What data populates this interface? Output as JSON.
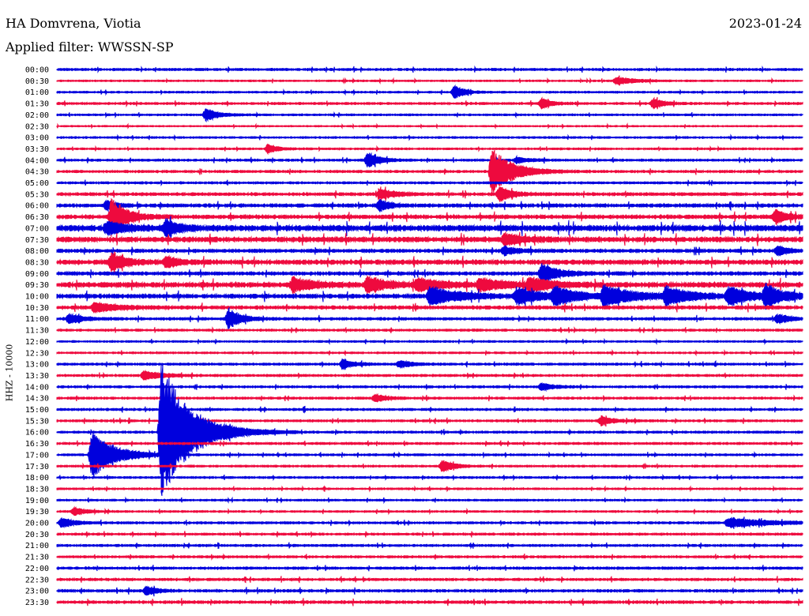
{
  "header": {
    "station": "HA Domvrena, Viotia",
    "date": "2023-01-24",
    "filter": "Applied filter: WWSSN-SP",
    "channel": "HHZ - 10000"
  },
  "colors": {
    "odd_trace": "#0000dd",
    "even_trace": "#ee0a3e"
  },
  "chart_data": {
    "type": "line",
    "title": "HA Domvrena, Viotia",
    "ylabel": "HHZ - 10000",
    "grid": false,
    "legend": "none",
    "rows": [
      "00:00",
      "00:30",
      "01:00",
      "01:30",
      "02:00",
      "02:30",
      "03:00",
      "03:30",
      "04:00",
      "04:30",
      "05:00",
      "05:30",
      "06:00",
      "06:30",
      "07:00",
      "07:30",
      "08:00",
      "08:30",
      "09:00",
      "09:30",
      "10:00",
      "10:30",
      "11:00",
      "11:30",
      "12:00",
      "12:30",
      "13:00",
      "13:30",
      "14:00",
      "14:30",
      "15:00",
      "15:30",
      "16:00",
      "16:30",
      "17:00",
      "17:30",
      "18:00",
      "18:30",
      "19:00",
      "19:30",
      "20:00",
      "20:30",
      "21:00",
      "21:30",
      "22:00",
      "22:30",
      "23:00",
      "23:30"
    ],
    "row_minutes": 30,
    "noise": [
      1.2,
      0.9,
      1.0,
      1.2,
      1.0,
      0.8,
      1.0,
      1.0,
      1.2,
      1.3,
      1.2,
      1.6,
      1.8,
      2.0,
      3.0,
      2.6,
      1.8,
      2.4,
      1.8,
      2.6,
      2.2,
      1.8,
      1.4,
      1.2,
      1.0,
      1.0,
      1.2,
      1.2,
      1.2,
      1.2,
      1.2,
      1.2,
      1.2,
      1.2,
      1.1,
      1.1,
      1.1,
      1.0,
      1.0,
      1.0,
      1.2,
      1.2,
      1.2,
      1.2,
      1.3,
      1.3,
      1.4,
      1.5
    ],
    "events": [
      {
        "row": 1,
        "minute": 22.5,
        "amplitude": 5,
        "duration": 1.5
      },
      {
        "row": 2,
        "minute": 16.0,
        "amplitude": 9,
        "duration": 0.8
      },
      {
        "row": 3,
        "minute": 19.5,
        "amplitude": 7,
        "duration": 0.8
      },
      {
        "row": 3,
        "minute": 24.0,
        "amplitude": 7,
        "duration": 0.8
      },
      {
        "row": 4,
        "minute": 6.0,
        "amplitude": 9,
        "duration": 1.0
      },
      {
        "row": 7,
        "minute": 8.5,
        "amplitude": 6,
        "duration": 0.8
      },
      {
        "row": 8,
        "minute": 12.5,
        "amplitude": 10,
        "duration": 1.0
      },
      {
        "row": 8,
        "minute": 18.5,
        "amplitude": 4,
        "duration": 1.0
      },
      {
        "row": 9,
        "minute": 17.5,
        "amplitude": 30,
        "duration": 1.8
      },
      {
        "row": 11,
        "minute": 13.0,
        "amplitude": 7,
        "duration": 1.2
      },
      {
        "row": 11,
        "minute": 17.8,
        "amplitude": 10,
        "duration": 1.0
      },
      {
        "row": 12,
        "minute": 2.0,
        "amplitude": 7,
        "duration": 0.8
      },
      {
        "row": 12,
        "minute": 13.0,
        "amplitude": 8,
        "duration": 0.8
      },
      {
        "row": 13,
        "minute": 2.2,
        "amplitude": 26,
        "duration": 1.2
      },
      {
        "row": 13,
        "minute": 28.9,
        "amplitude": 9,
        "duration": 1.0
      },
      {
        "row": 14,
        "minute": 2.0,
        "amplitude": 8,
        "duration": 1.5
      },
      {
        "row": 14,
        "minute": 4.4,
        "amplitude": 12,
        "duration": 1.0
      },
      {
        "row": 15,
        "minute": 18.0,
        "amplitude": 7,
        "duration": 1.5
      },
      {
        "row": 16,
        "minute": 18.0,
        "amplitude": 6,
        "duration": 1.0
      },
      {
        "row": 16,
        "minute": 29.0,
        "amplitude": 6,
        "duration": 1.0
      },
      {
        "row": 17,
        "minute": 2.2,
        "amplitude": 12,
        "duration": 1.2
      },
      {
        "row": 17,
        "minute": 4.4,
        "amplitude": 8,
        "duration": 1.0
      },
      {
        "row": 18,
        "minute": 19.5,
        "amplitude": 12,
        "duration": 1.5
      },
      {
        "row": 19,
        "minute": 9.5,
        "amplitude": 10,
        "duration": 1.5
      },
      {
        "row": 19,
        "minute": 12.5,
        "amplitude": 11,
        "duration": 1.5
      },
      {
        "row": 19,
        "minute": 14.5,
        "amplitude": 8,
        "duration": 2.0
      },
      {
        "row": 19,
        "minute": 17.0,
        "amplitude": 8,
        "duration": 2.0
      },
      {
        "row": 19,
        "minute": 19.0,
        "amplitude": 9,
        "duration": 2.0
      },
      {
        "row": 20,
        "minute": 15.0,
        "amplitude": 12,
        "duration": 2.5
      },
      {
        "row": 20,
        "minute": 18.5,
        "amplitude": 10,
        "duration": 2.0
      },
      {
        "row": 20,
        "minute": 20.0,
        "amplitude": 11,
        "duration": 2.0
      },
      {
        "row": 20,
        "minute": 22.0,
        "amplitude": 13,
        "duration": 2.5
      },
      {
        "row": 20,
        "minute": 24.5,
        "amplitude": 12,
        "duration": 2.0
      },
      {
        "row": 20,
        "minute": 27.0,
        "amplitude": 11,
        "duration": 2.0
      },
      {
        "row": 20,
        "minute": 28.5,
        "amplitude": 14,
        "duration": 1.5
      },
      {
        "row": 21,
        "minute": 1.5,
        "amplitude": 6,
        "duration": 2.0
      },
      {
        "row": 22,
        "minute": 0.5,
        "amplitude": 7,
        "duration": 1.0
      },
      {
        "row": 22,
        "minute": 6.9,
        "amplitude": 14,
        "duration": 1.0
      },
      {
        "row": 22,
        "minute": 29.0,
        "amplitude": 6,
        "duration": 1.0
      },
      {
        "row": 26,
        "minute": 11.5,
        "amplitude": 6,
        "duration": 1.0
      },
      {
        "row": 26,
        "minute": 13.8,
        "amplitude": 5,
        "duration": 1.0
      },
      {
        "row": 27,
        "minute": 3.5,
        "amplitude": 6,
        "duration": 1.5
      },
      {
        "row": 28,
        "minute": 19.5,
        "amplitude": 5,
        "duration": 1.0
      },
      {
        "row": 29,
        "minute": 12.8,
        "amplitude": 5,
        "duration": 1.0
      },
      {
        "row": 31,
        "minute": 21.9,
        "amplitude": 6,
        "duration": 1.0
      },
      {
        "row": 32,
        "minute": 4.2,
        "amplitude": 90,
        "duration": 2.5
      },
      {
        "row": 34,
        "minute": 1.4,
        "amplitude": 30,
        "duration": 2.0
      },
      {
        "row": 35,
        "minute": 15.5,
        "amplitude": 8,
        "duration": 1.0
      },
      {
        "row": 39,
        "minute": 0.7,
        "amplitude": 5,
        "duration": 1.0
      },
      {
        "row": 40,
        "minute": 0.2,
        "amplitude": 7,
        "duration": 1.0
      },
      {
        "row": 40,
        "minute": 27.0,
        "amplitude": 6,
        "duration": 3.5
      },
      {
        "row": 46,
        "minute": 3.6,
        "amplitude": 6,
        "duration": 0.8
      }
    ]
  }
}
